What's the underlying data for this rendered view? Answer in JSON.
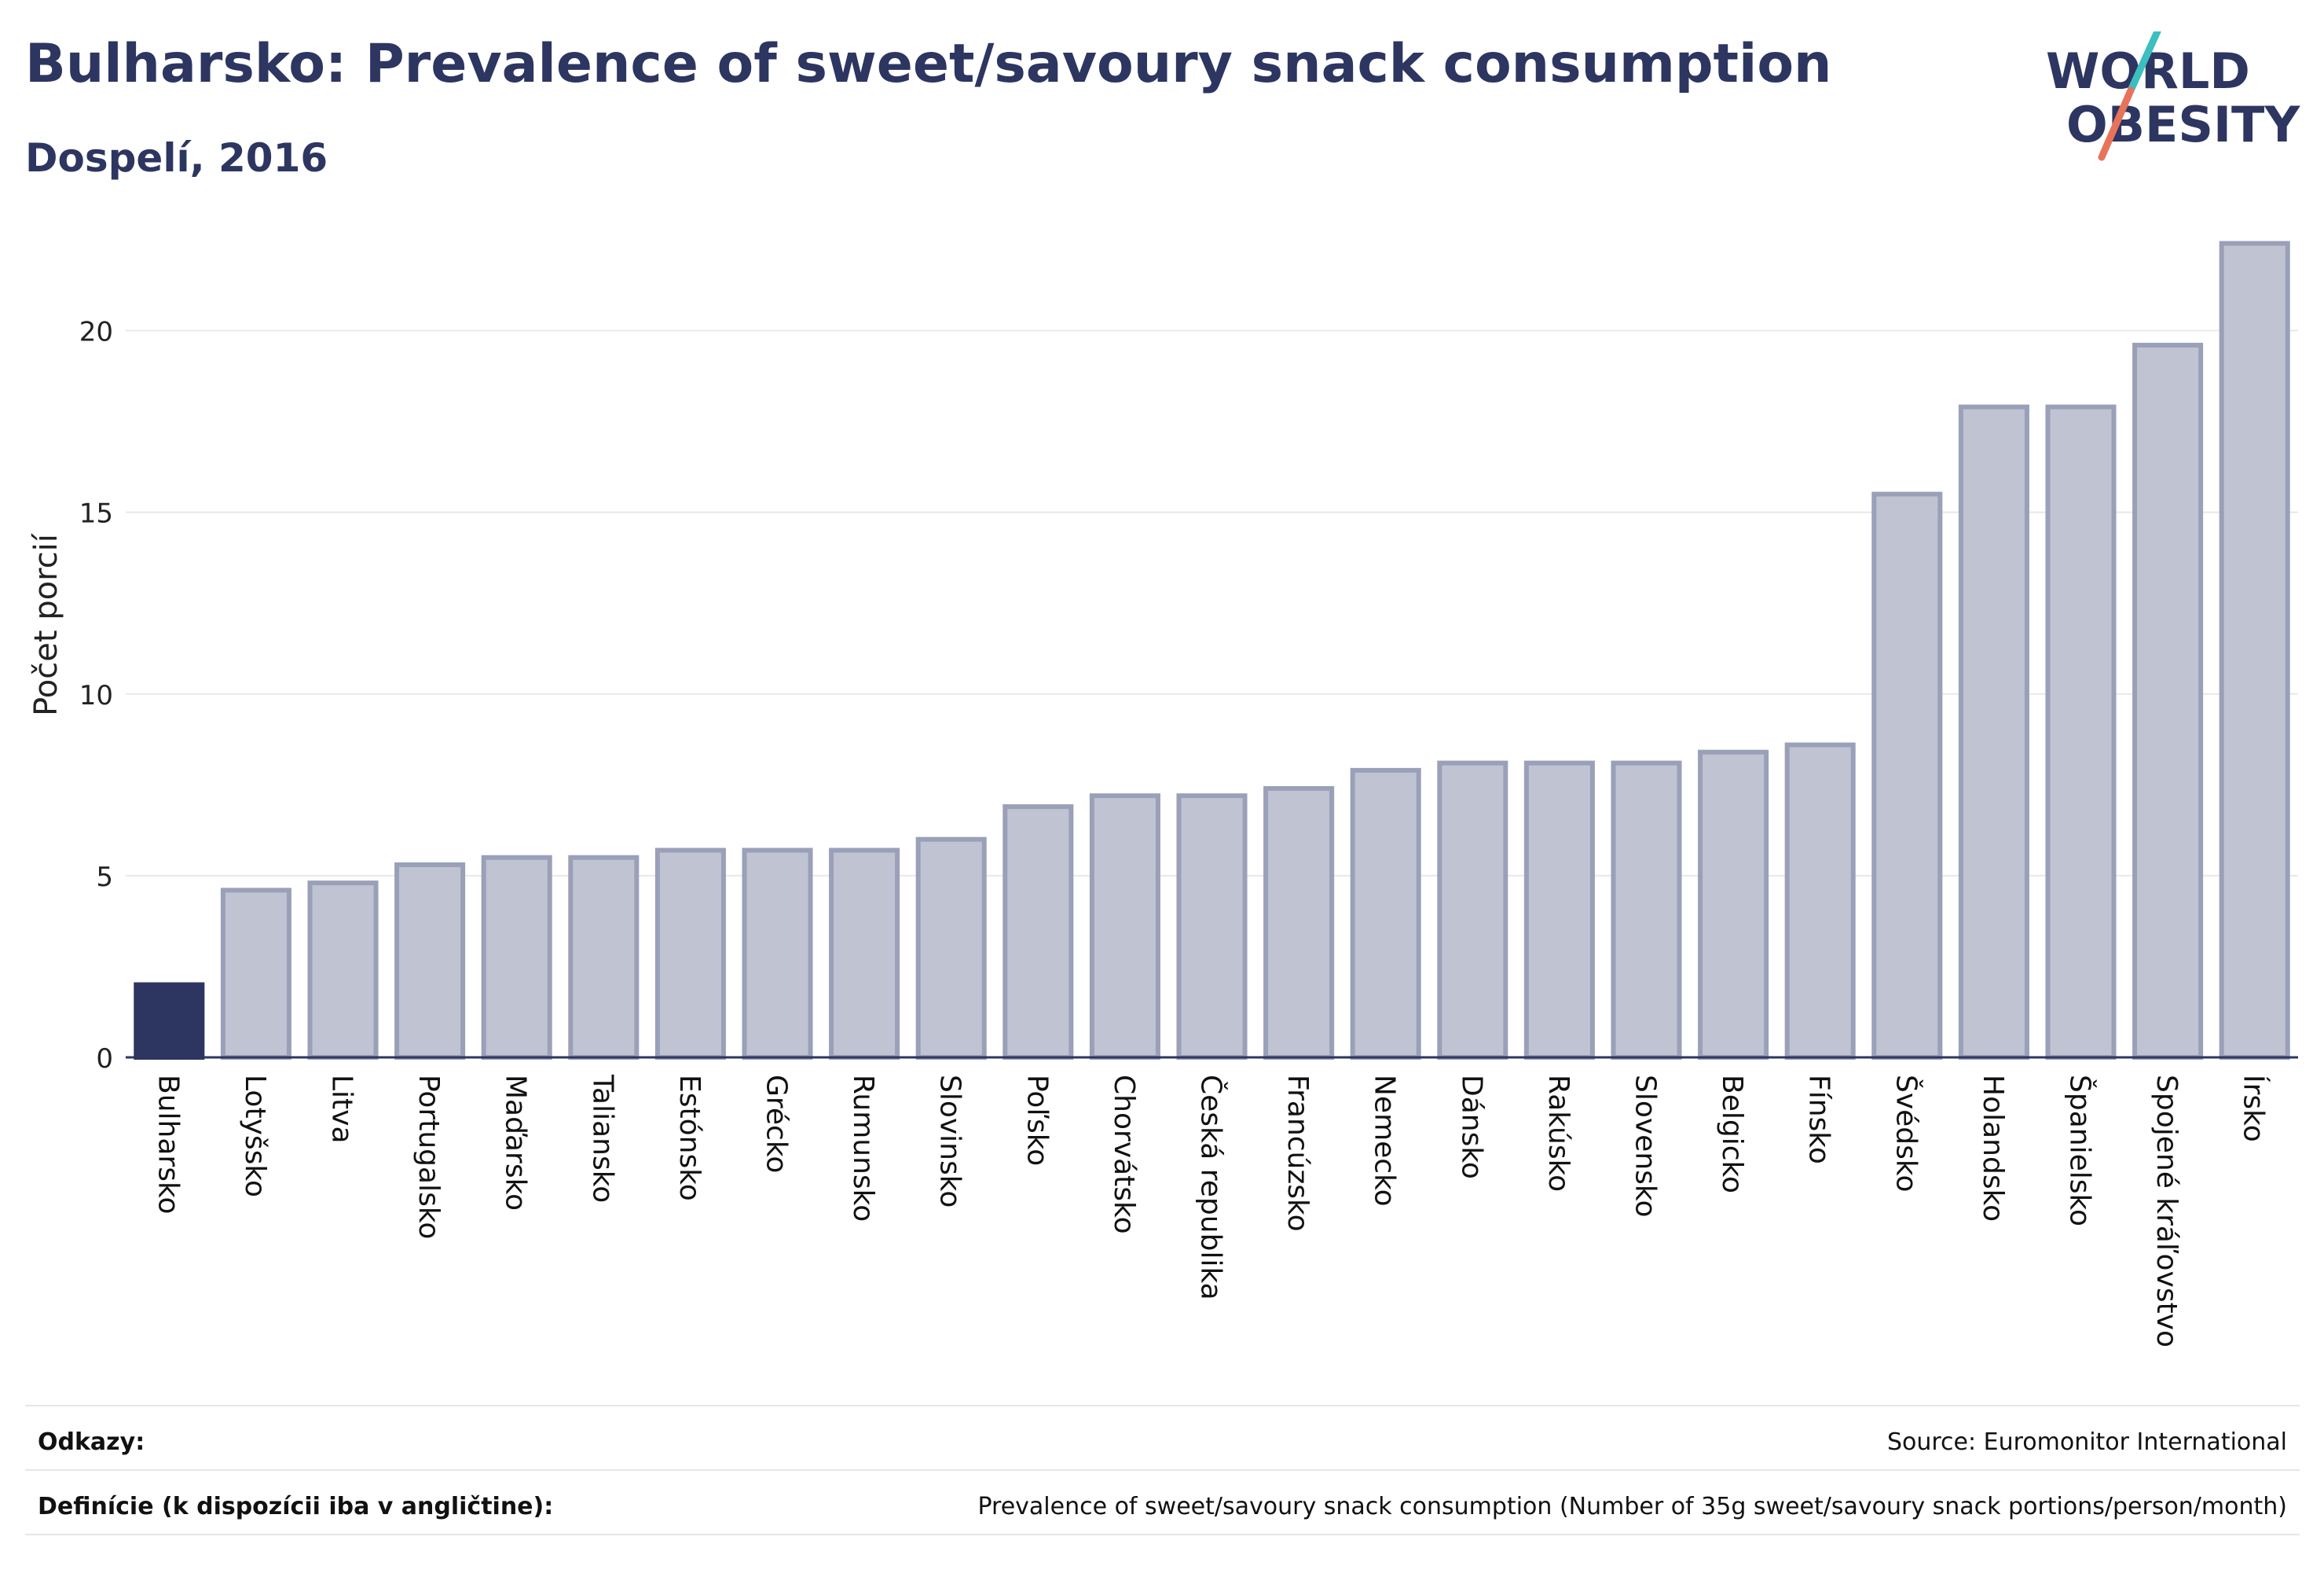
{
  "header": {
    "title": "Bulharsko: Prevalence of sweet/savoury snack consumption",
    "subtitle": "Dospelí, 2016"
  },
  "logo": {
    "line1": "WORLD",
    "line2": "OBESITY",
    "colors": {
      "text": "#2d3561",
      "slash_top": "#3bbfbf",
      "slash_bottom": "#e8735a"
    }
  },
  "colors": {
    "highlight_bar": "#2d3561",
    "bar_fill": "#c0c3d2",
    "bar_stroke": "#9aa0b8",
    "grid": "#e8e8e8",
    "axis": "#2d3561"
  },
  "chart_data": {
    "type": "bar",
    "ylabel": "Počet porcií",
    "ylim": [
      0,
      22.5
    ],
    "yticks": [
      0,
      5,
      10,
      15,
      20
    ],
    "grid": true,
    "highlight": "Bulharsko",
    "categories": [
      "Bulharsko",
      "Lotyšsko",
      "Litva",
      "Portugalsko",
      "Maďarsko",
      "Taliansko",
      "Estónsko",
      "Grécko",
      "Rumunsko",
      "Slovinsko",
      "Poľsko",
      "Chorvátsko",
      "Česká republika",
      "Francúzsko",
      "Nemecko",
      "Dánsko",
      "Rakúsko",
      "Slovensko",
      "Belgicko",
      "Fínsko",
      "Švédsko",
      "Holandsko",
      "Španielsko",
      "Spojené kráľovstvo",
      "Írsko"
    ],
    "values": [
      2.0,
      4.6,
      4.8,
      5.3,
      5.5,
      5.5,
      5.7,
      5.7,
      5.7,
      6.0,
      6.9,
      7.2,
      7.2,
      7.4,
      7.9,
      8.1,
      8.1,
      8.1,
      8.4,
      8.6,
      15.5,
      17.9,
      17.9,
      19.6,
      22.4
    ]
  },
  "footer": {
    "refs_label": "Odkazy:",
    "refs_value": "Source: Euromonitor International",
    "defs_label": "Definície (k dispozícii iba v angličtine):",
    "defs_value": "Prevalence of sweet/savoury snack consumption (Number of 35g sweet/savoury snack portions/person/month)"
  }
}
